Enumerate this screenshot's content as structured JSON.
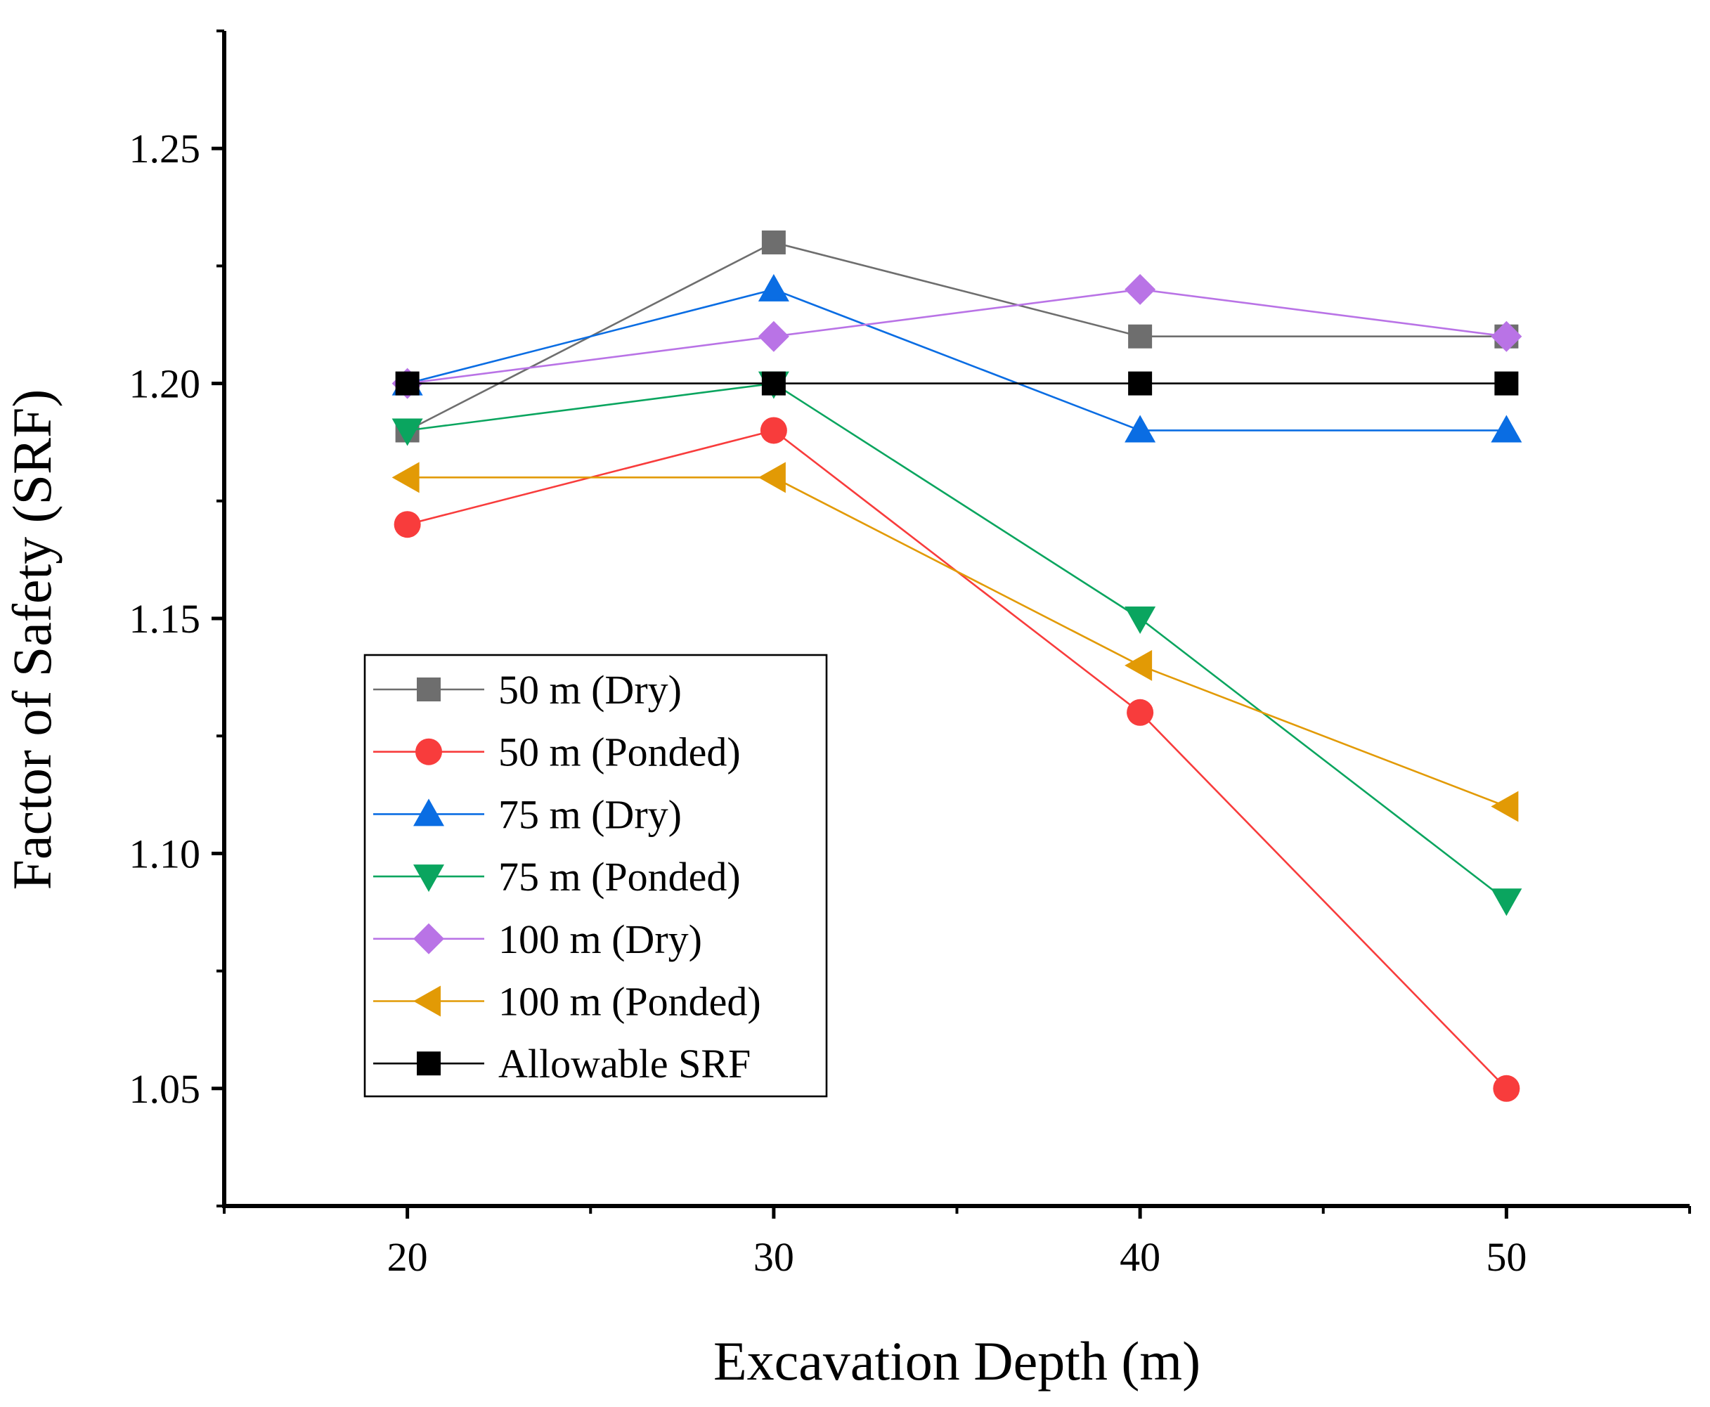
{
  "chart_data": {
    "type": "line",
    "title": "",
    "xlabel": "Excavation Depth (m)",
    "ylabel": "Factor of Safety (SRF)",
    "xlim": [
      15,
      55
    ],
    "ylim": [
      1.025,
      1.275
    ],
    "x_ticks": [
      20,
      30,
      40,
      50
    ],
    "x_minor_ticks": [
      15,
      25,
      35,
      45,
      55
    ],
    "y_ticks": [
      1.05,
      1.1,
      1.15,
      1.2,
      1.25
    ],
    "y_tick_labels": [
      "1.05",
      "1.10",
      "1.15",
      "1.20",
      "1.25"
    ],
    "y_minor_ticks": [
      1.025,
      1.075,
      1.125,
      1.175,
      1.225,
      1.275
    ],
    "x": [
      20,
      30,
      40,
      50
    ],
    "legend_position": "lower-left",
    "series": [
      {
        "name": "50 m (Dry)",
        "values": [
          1.19,
          1.23,
          1.21,
          1.21
        ],
        "color": "#6e6e6e",
        "marker": "square"
      },
      {
        "name": "50 m (Ponded)",
        "values": [
          1.17,
          1.19,
          1.13,
          1.05
        ],
        "color": "#f83c3c",
        "marker": "circle"
      },
      {
        "name": "75 m (Dry)",
        "values": [
          1.2,
          1.22,
          1.19,
          1.19
        ],
        "color": "#0a6de3",
        "marker": "triangle-up"
      },
      {
        "name": "75 m (Ponded)",
        "values": [
          1.19,
          1.2,
          1.15,
          1.09
        ],
        "color": "#0aa55f",
        "marker": "triangle-down"
      },
      {
        "name": "100 m (Dry)",
        "values": [
          1.2,
          1.21,
          1.22,
          1.21
        ],
        "color": "#b973e6",
        "marker": "diamond"
      },
      {
        "name": "100 m (Ponded)",
        "values": [
          1.18,
          1.18,
          1.14,
          1.11
        ],
        "color": "#e29a05",
        "marker": "triangle-left"
      },
      {
        "name": "Allowable SRF",
        "values": [
          1.2,
          1.2,
          1.2,
          1.2
        ],
        "color": "#000000",
        "marker": "square"
      }
    ]
  }
}
